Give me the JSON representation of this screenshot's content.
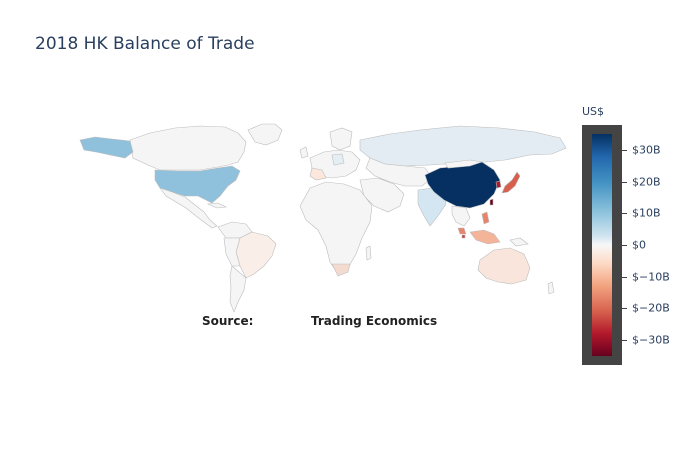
{
  "title": "2018 HK Balance of Trade",
  "source": {
    "label": "Source:",
    "value": "Trading Economics"
  },
  "colorbar": {
    "title": "US$",
    "ticks": [
      {
        "label": "$30B",
        "value": 30
      },
      {
        "label": "$20B",
        "value": 20
      },
      {
        "label": "$10B",
        "value": 10
      },
      {
        "label": "$0",
        "value": 0
      },
      {
        "label": "$−10B",
        "value": -10
      },
      {
        "label": "$−20B",
        "value": -20
      },
      {
        "label": "$−30B",
        "value": -30
      }
    ],
    "range": [
      -35,
      35
    ],
    "colorscale": "RdBu"
  },
  "chart_data": {
    "type": "choropleth",
    "unit": "US$ billions",
    "countries": [
      {
        "name": "China",
        "value": 35
      },
      {
        "name": "United States",
        "value": 10
      },
      {
        "name": "India",
        "value": 3
      },
      {
        "name": "Russia",
        "value": 1
      },
      {
        "name": "Brazil",
        "value": -1
      },
      {
        "name": "Australia",
        "value": -2
      },
      {
        "name": "Japan",
        "value": -20
      },
      {
        "name": "South Korea",
        "value": -25
      },
      {
        "name": "Taiwan",
        "value": -30
      },
      {
        "name": "Singapore",
        "value": -20
      },
      {
        "name": "Malaysia",
        "value": -6
      },
      {
        "name": "Philippines",
        "value": -6
      }
    ]
  }
}
